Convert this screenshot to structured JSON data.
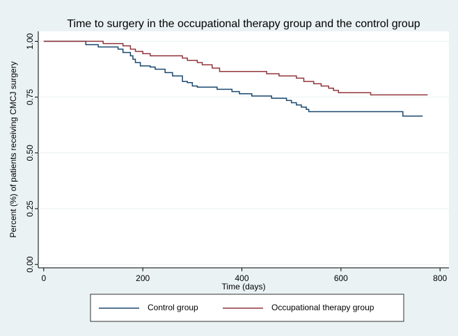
{
  "chart_data": {
    "type": "line",
    "title": "Time to surgery in the occupational therapy group and the control group",
    "x_label": "Time (days)",
    "y_label": "Percent (%) of patients receiving CMCJ surgery",
    "xlim": [
      -11,
      818
    ],
    "ylim": [
      -0.015,
      1.045
    ],
    "xticks": [
      0,
      200,
      400,
      600,
      800
    ],
    "yticks": [
      {
        "value": 0,
        "label": "0.00"
      },
      {
        "value": 0.25,
        "label": "0.25"
      },
      {
        "value": 0.5,
        "label": "0.50"
      },
      {
        "value": 0.75,
        "label": "0.75"
      },
      {
        "value": 1,
        "label": "1.00"
      }
    ],
    "grid": true,
    "legend": "bottom",
    "series": [
      {
        "name": "Control group",
        "color": "#1a476f",
        "x": [
          0,
          85,
          85,
          110,
          110,
          150,
          150,
          160,
          160,
          175,
          175,
          180,
          180,
          185,
          185,
          195,
          195,
          215,
          215,
          225,
          225,
          245,
          245,
          260,
          260,
          280,
          280,
          290,
          290,
          300,
          300,
          310,
          310,
          350,
          350,
          380,
          380,
          395,
          395,
          420,
          420,
          460,
          460,
          490,
          490,
          500,
          500,
          510,
          510,
          520,
          520,
          530,
          530,
          535,
          535,
          725,
          725,
          765
        ],
        "values": [
          1,
          1,
          0.985,
          0.985,
          0.975,
          0.975,
          0.965,
          0.965,
          0.95,
          0.95,
          0.935,
          0.935,
          0.92,
          0.92,
          0.905,
          0.905,
          0.89,
          0.89,
          0.885,
          0.885,
          0.875,
          0.875,
          0.86,
          0.86,
          0.845,
          0.845,
          0.82,
          0.82,
          0.815,
          0.815,
          0.8,
          0.8,
          0.795,
          0.795,
          0.785,
          0.785,
          0.775,
          0.775,
          0.765,
          0.765,
          0.755,
          0.755,
          0.745,
          0.745,
          0.735,
          0.735,
          0.725,
          0.725,
          0.715,
          0.715,
          0.705,
          0.705,
          0.695,
          0.695,
          0.685,
          0.685,
          0.665,
          0.665
        ]
      },
      {
        "name": "Occupational therapy group",
        "color": "#90353b",
        "x": [
          0,
          120,
          120,
          160,
          160,
          175,
          175,
          185,
          185,
          200,
          200,
          215,
          215,
          280,
          280,
          290,
          290,
          310,
          310,
          320,
          320,
          340,
          340,
          355,
          355,
          450,
          450,
          475,
          475,
          510,
          510,
          525,
          525,
          545,
          545,
          560,
          560,
          575,
          575,
          585,
          585,
          595,
          595,
          660,
          660,
          775
        ],
        "values": [
          1,
          1,
          0.99,
          0.99,
          0.98,
          0.98,
          0.965,
          0.965,
          0.955,
          0.955,
          0.945,
          0.945,
          0.935,
          0.935,
          0.925,
          0.925,
          0.915,
          0.915,
          0.905,
          0.905,
          0.895,
          0.895,
          0.88,
          0.88,
          0.865,
          0.865,
          0.855,
          0.855,
          0.845,
          0.845,
          0.835,
          0.835,
          0.82,
          0.82,
          0.81,
          0.81,
          0.8,
          0.8,
          0.79,
          0.79,
          0.78,
          0.78,
          0.77,
          0.77,
          0.76,
          0.76
        ]
      }
    ]
  }
}
